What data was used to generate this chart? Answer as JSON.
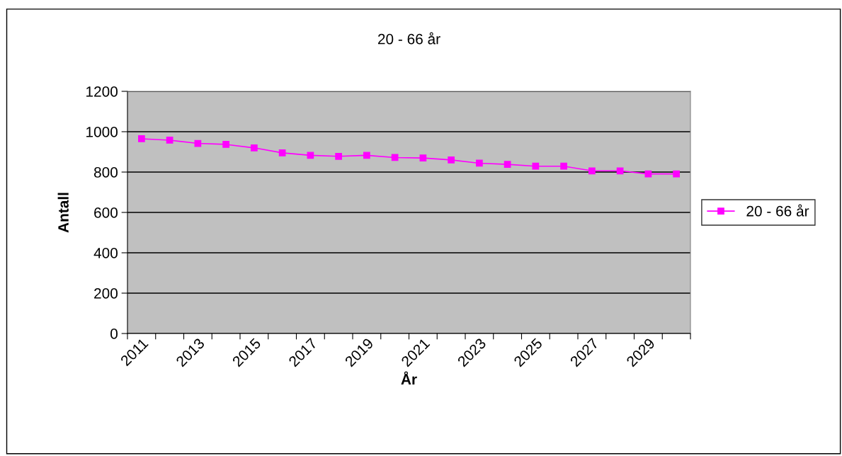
{
  "chart_data": {
    "type": "line",
    "title": "20 - 66 år",
    "xlabel": "År",
    "ylabel": "Antall",
    "categories": [
      "2011",
      null,
      "2013",
      null,
      "2015",
      null,
      "2017",
      null,
      "2019",
      null,
      "2021",
      null,
      "2023",
      null,
      "2025",
      null,
      "2027",
      null,
      "2029",
      null
    ],
    "series": [
      {
        "name": "20 - 66 år",
        "color": "#ff00ff",
        "values": [
          965,
          958,
          942,
          937,
          920,
          895,
          883,
          878,
          883,
          872,
          870,
          860,
          844,
          838,
          829,
          829,
          806,
          806,
          791,
          791
        ]
      }
    ],
    "ylim": [
      0,
      1200
    ],
    "yticks": [
      0,
      200,
      400,
      600,
      800,
      1000,
      1200
    ],
    "grid": "y",
    "legend": "right",
    "marker": "square",
    "line_style": "solid"
  }
}
